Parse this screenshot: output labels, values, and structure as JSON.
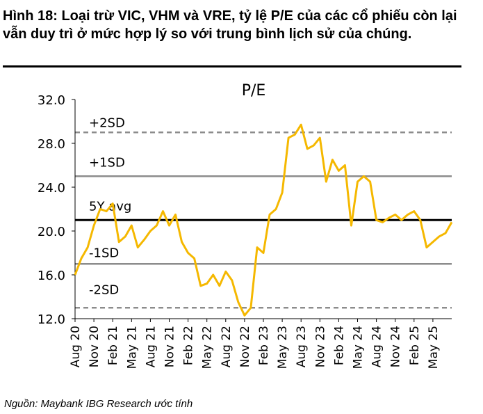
{
  "figure": {
    "title": "Hình 18: Loại trừ VIC, VHM và VRE, tỷ lệ P/E của các cổ phiếu còn lại vẫn duy trì ở mức hợp lý so với trung bình lịch sử của chúng.",
    "source": "Nguồn: Maybank IBG Research ước tính"
  },
  "chart_data": {
    "type": "line",
    "title": "P/E",
    "ylim": [
      12.0,
      32.0
    ],
    "yticks": [
      "32.0",
      "28.0",
      "24.0",
      "20.0",
      "16.0",
      "12.0"
    ],
    "xlim": [
      "2020-08",
      "2025-08"
    ],
    "xticks": [
      "Aug 20",
      "Nov 20",
      "Feb 21",
      "May 21",
      "Aug 21",
      "Nov 21",
      "Feb 22",
      "May 22",
      "Aug 22",
      "Nov 22",
      "Feb 23",
      "May 23",
      "Aug 23",
      "Nov 23",
      "Feb 24",
      "May 24",
      "Aug 24",
      "Nov 24",
      "Feb 25",
      "May 25"
    ],
    "series_color": "#F5B800",
    "reference_lines": [
      {
        "label": "+2SD",
        "value": 29.0,
        "style": "dashed",
        "color": "#8c8c8c"
      },
      {
        "label": "+1SD",
        "value": 25.0,
        "style": "solid",
        "color": "#8c8c8c"
      },
      {
        "label": "5Y avg",
        "value": 21.0,
        "style": "solid",
        "color": "#000000"
      },
      {
        "label": "-1SD",
        "value": 17.0,
        "style": "solid",
        "color": "#8c8c8c"
      },
      {
        "label": "-2SD",
        "value": 13.0,
        "style": "dashed",
        "color": "#8c8c8c"
      }
    ],
    "series": [
      {
        "x": [
          "2020-08",
          "2020-09",
          "2020-10",
          "2020-11",
          "2020-12",
          "2021-01",
          "2021-02",
          "2021-03",
          "2021-04",
          "2021-05",
          "2021-06",
          "2021-07",
          "2021-08",
          "2021-09",
          "2021-10",
          "2021-11",
          "2021-12",
          "2022-01",
          "2022-02",
          "2022-03",
          "2022-04",
          "2022-05",
          "2022-06",
          "2022-07",
          "2022-08",
          "2022-09",
          "2022-10",
          "2022-11",
          "2022-12",
          "2023-01",
          "2023-02",
          "2023-03",
          "2023-04",
          "2023-05",
          "2023-06",
          "2023-07",
          "2023-08",
          "2023-09",
          "2023-10",
          "2023-11",
          "2023-12",
          "2024-01",
          "2024-02",
          "2024-03",
          "2024-04",
          "2024-05",
          "2024-06",
          "2024-07",
          "2024-08",
          "2024-09",
          "2024-10",
          "2024-11",
          "2024-12",
          "2025-01",
          "2025-02",
          "2025-03",
          "2025-04",
          "2025-05",
          "2025-06",
          "2025-07",
          "2025-08"
        ],
        "values": [
          16.0,
          17.5,
          18.5,
          20.5,
          22.0,
          21.8,
          22.5,
          19.0,
          19.5,
          20.5,
          18.5,
          19.2,
          20.0,
          20.5,
          21.8,
          20.5,
          21.5,
          19.0,
          18.0,
          17.5,
          15.0,
          15.2,
          16.0,
          15.0,
          16.3,
          15.5,
          13.5,
          12.3,
          13.0,
          18.5,
          18.0,
          21.5,
          22.0,
          23.5,
          28.5,
          28.8,
          29.7,
          27.5,
          27.8,
          28.5,
          24.5,
          26.5,
          25.5,
          26.0,
          20.5,
          24.5,
          25.0,
          24.5,
          21.0,
          20.8,
          21.2,
          21.5,
          21.0,
          21.5,
          21.8,
          21.0,
          18.5,
          19.0,
          19.5,
          19.8,
          20.8
        ]
      }
    ]
  }
}
